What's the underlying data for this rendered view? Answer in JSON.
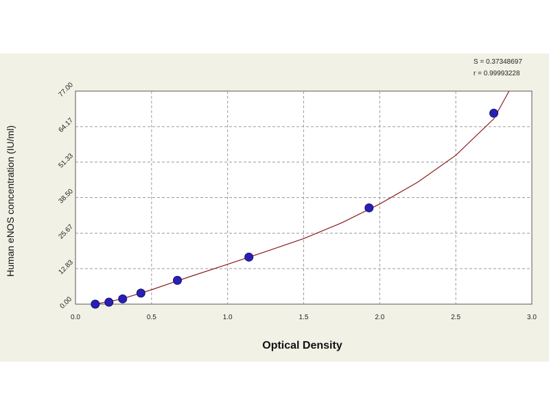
{
  "chart_data": {
    "type": "scatter",
    "xlabel": "Optical Density",
    "ylabel": "Human eNOS concentration (IU/ml)",
    "xlim": [
      0,
      3
    ],
    "ylim": [
      0,
      77
    ],
    "x_ticks": [
      "0.0",
      "0.5",
      "1.0",
      "1.5",
      "2.0",
      "2.5",
      "3.0"
    ],
    "y_ticks": [
      "0.00",
      "12.83",
      "25.67",
      "38.50",
      "51.33",
      "64.17",
      "77.00"
    ],
    "grid": true,
    "stats": {
      "s_text": "S = 0.37348697",
      "r_text": "r = 0.99993228"
    },
    "points": [
      {
        "x": 0.13,
        "y": 0.0
      },
      {
        "x": 0.22,
        "y": 0.7
      },
      {
        "x": 0.31,
        "y": 1.9
      },
      {
        "x": 0.43,
        "y": 4.0
      },
      {
        "x": 0.67,
        "y": 8.6
      },
      {
        "x": 1.14,
        "y": 17.0
      },
      {
        "x": 1.93,
        "y": 34.8
      },
      {
        "x": 2.75,
        "y": 69.0
      }
    ],
    "fit_curve": [
      {
        "x": 0.13,
        "y": 0.0
      },
      {
        "x": 0.3,
        "y": 1.8
      },
      {
        "x": 0.5,
        "y": 5.2
      },
      {
        "x": 0.75,
        "y": 9.9
      },
      {
        "x": 1.0,
        "y": 14.4
      },
      {
        "x": 1.25,
        "y": 19.0
      },
      {
        "x": 1.5,
        "y": 23.7
      },
      {
        "x": 1.75,
        "y": 29.4
      },
      {
        "x": 2.0,
        "y": 36.2
      },
      {
        "x": 2.25,
        "y": 44.1
      },
      {
        "x": 2.5,
        "y": 53.8
      },
      {
        "x": 2.75,
        "y": 67.0
      },
      {
        "x": 2.85,
        "y": 77.0
      }
    ],
    "colors": {
      "background": "#f2f1e6",
      "plot_area": "#ffffff",
      "grid": "#9a9a9a",
      "curve": "#8b1a1a",
      "marker_fill": "#2a1fb5",
      "marker_stroke": "#12106a"
    }
  }
}
